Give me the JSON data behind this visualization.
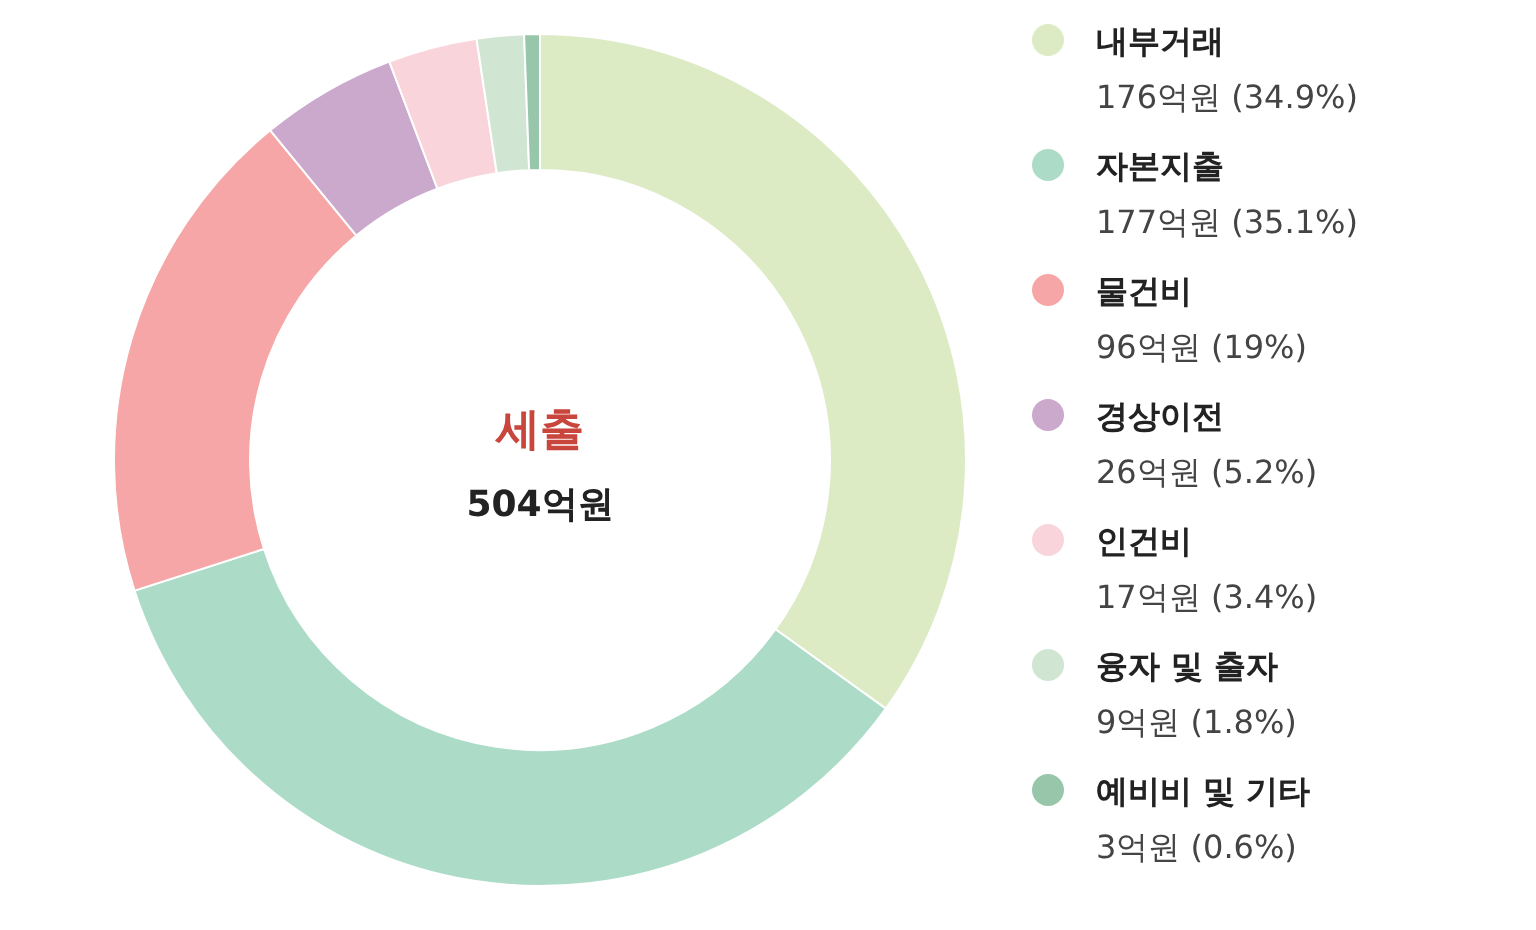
{
  "chart_data": {
    "type": "donut",
    "title": "세출",
    "subtitle": "504억원",
    "categories": [
      "내부거래",
      "자본지출",
      "물건비",
      "경상이전",
      "인건비",
      "융자 및 출자",
      "예비비 및 기타"
    ],
    "values": [
      176,
      177,
      96,
      26,
      17,
      9,
      3
    ],
    "colors": [
      "#dcebc4",
      "#acdcc8",
      "#f6a6a6",
      "#cba9cd",
      "#f9d5db",
      "#d0e5d2",
      "#98c6aa"
    ],
    "value_labels": [
      "176억원 (34.9%)",
      "177억원 (35.1%)",
      "96억원 (19%)",
      "26억원 (5.2%)",
      "17억원 (3.4%)",
      "9억원 (1.8%)",
      "3억원 (0.6%)"
    ],
    "legend": "right"
  }
}
